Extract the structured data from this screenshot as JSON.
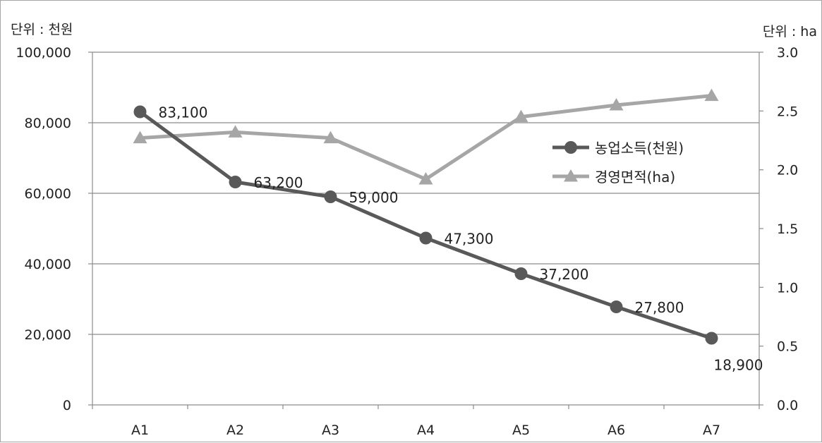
{
  "chart_data": {
    "type": "line",
    "left_unit_label": "단위 : 천원",
    "right_unit_label": "단위 : ha",
    "categories": [
      "A1",
      "A2",
      "A3",
      "A4",
      "A5",
      "A6",
      "A7"
    ],
    "y_left": {
      "range": [
        0,
        100000
      ],
      "ticks": [
        0,
        20000,
        40000,
        60000,
        80000,
        100000
      ],
      "tick_labels": [
        "0",
        "20,000",
        "40,000",
        "60,000",
        "80,000",
        "100,000"
      ]
    },
    "y_right": {
      "range": [
        0,
        3.0
      ],
      "ticks": [
        0,
        0.5,
        1.0,
        1.5,
        2.0,
        2.5,
        3.0
      ],
      "tick_labels": [
        "0.0",
        "0.5",
        "1.0",
        "1.5",
        "2.0",
        "2.5",
        "3.0"
      ]
    },
    "grid": true,
    "legend_position": "right-middle",
    "series": [
      {
        "name": "농업소득(천원)",
        "axis": "left",
        "marker": "circle",
        "color": "#595959",
        "values": [
          83100,
          63200,
          59000,
          47300,
          37200,
          27800,
          18900
        ],
        "data_labels": [
          "83,100",
          "63,200",
          "59,000",
          "47,300",
          "37,200",
          "27,800",
          "18,900"
        ]
      },
      {
        "name": "경영면적(ha)",
        "axis": "right",
        "marker": "triangle",
        "color": "#a6a6a6",
        "values": [
          2.27,
          2.32,
          2.27,
          1.92,
          2.45,
          2.55,
          2.63
        ]
      }
    ]
  }
}
